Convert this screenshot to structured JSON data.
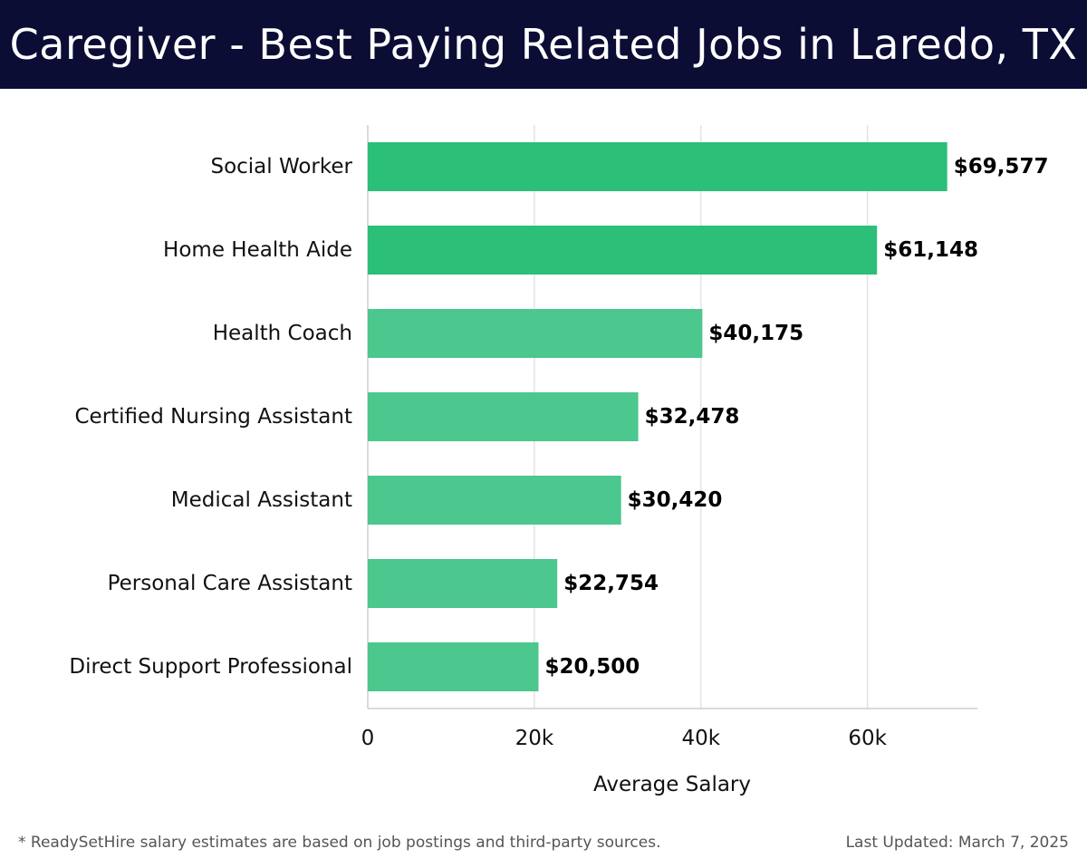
{
  "title": "Caregiver - Best Paying Related Jobs in Laredo, TX",
  "footer": {
    "note": "* ReadySetHire salary estimates are based on job postings and third-party sources.",
    "updated": "Last Updated: March 7, 2025"
  },
  "colors": {
    "header_bg": "#0c0d35",
    "bar_dark": "#2bbf78",
    "bar_light": "#4cc78d",
    "grid": "#e3e3e3",
    "axis": "#cfcfcf"
  },
  "chart_data": {
    "type": "bar",
    "orientation": "horizontal",
    "categories": [
      "Social Worker",
      "Home Health Aide",
      "Health Coach",
      "Certified Nursing Assistant",
      "Medical Assistant",
      "Personal Care Assistant",
      "Direct Support Professional"
    ],
    "values": [
      69577,
      61148,
      40175,
      32478,
      30420,
      22754,
      20500
    ],
    "value_labels": [
      "$69,577",
      "$61,148",
      "$40,175",
      "$32,478",
      "$30,420",
      "$22,754",
      "$20,500"
    ],
    "xlabel": "Average Salary",
    "ylabel": "",
    "xlim": [
      0,
      73200
    ],
    "xticks": [
      0,
      20000,
      40000,
      60000
    ],
    "xtick_labels": [
      "0",
      "20k",
      "40k",
      "60k"
    ],
    "grid": true
  }
}
